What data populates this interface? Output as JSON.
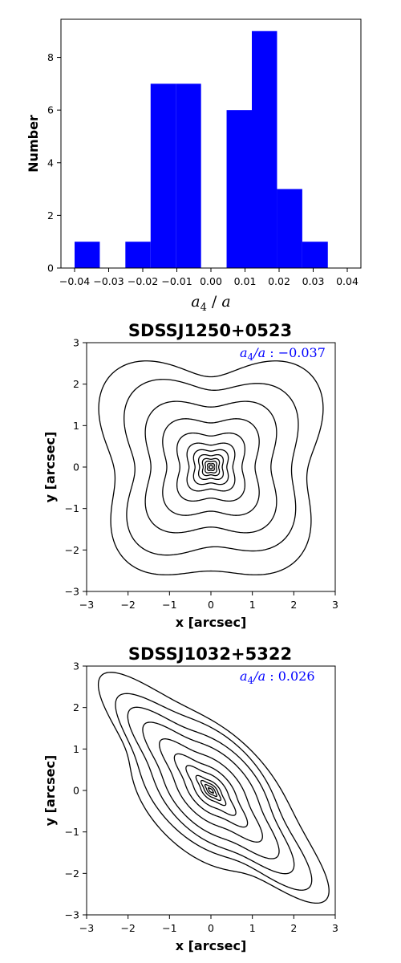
{
  "chart_data": [
    {
      "type": "bar",
      "subtype": "histogram",
      "xlabel": "a₄ / a",
      "ylabel": "Number",
      "xlim": [
        -0.044,
        0.044
      ],
      "ylim": [
        0,
        9.45
      ],
      "xticks": [
        "−0.04",
        "−0.03",
        "−0.02",
        "−0.01",
        "0.00",
        "0.01",
        "0.02",
        "0.03",
        "0.04"
      ],
      "xtick_values": [
        -0.04,
        -0.03,
        -0.02,
        -0.01,
        0.0,
        0.01,
        0.02,
        0.03,
        0.04
      ],
      "yticks": [
        "0",
        "2",
        "4",
        "6",
        "8"
      ],
      "ytick_values": [
        0,
        2,
        4,
        6,
        8
      ],
      "bin_edges": [
        -0.04,
        -0.0326,
        -0.0251,
        -0.0177,
        -0.0103,
        -0.0029,
        0.0046,
        0.012,
        0.0194,
        0.0268,
        0.0343
      ],
      "values": [
        1,
        0,
        1,
        7,
        7,
        0,
        6,
        9,
        3,
        1
      ],
      "color": "#0000ff",
      "grid": false
    },
    {
      "type": "contour",
      "title": "SDSSJ1250+0523",
      "xlabel": "x [arcsec]",
      "ylabel": "y [arcsec]",
      "xlim": [
        -3,
        3
      ],
      "ylim": [
        -3,
        3
      ],
      "xticks": [
        "−3",
        "−2",
        "−1",
        "0",
        "1",
        "2",
        "3"
      ],
      "yticks": [
        "−3",
        "−2",
        "−1",
        "0",
        "1",
        "2",
        "3"
      ],
      "annotation": {
        "label": "a₄/a : ",
        "value": "−0.037"
      },
      "a4": -0.037,
      "angle_deg": 0,
      "axis_ratio": 1.0,
      "level_radii": [
        2.75,
        2.22,
        1.7,
        1.25,
        0.88,
        0.62,
        0.45,
        0.32,
        0.22,
        0.15,
        0.09,
        0.04
      ],
      "color": "#000000"
    },
    {
      "type": "contour",
      "title": "SDSSJ1032+5322",
      "xlabel": "x [arcsec]",
      "ylabel": "y [arcsec]",
      "xlim": [
        -3,
        3
      ],
      "ylim": [
        -3,
        3
      ],
      "xticks": [
        "−3",
        "−2",
        "−1",
        "0",
        "1",
        "2",
        "3"
      ],
      "yticks": [
        "−3",
        "−2",
        "−1",
        "0",
        "1",
        "2",
        "3"
      ],
      "annotation": {
        "label": "a₄/a : ",
        "value": "0.026"
      },
      "a4": 0.026,
      "angle_deg": -45,
      "axis_ratio": 0.38,
      "level_radii": [
        3.45,
        2.95,
        2.5,
        2.05,
        1.55,
        1.1,
        0.75,
        0.45,
        0.3,
        0.18,
        0.08
      ],
      "color": "#000000"
    }
  ]
}
